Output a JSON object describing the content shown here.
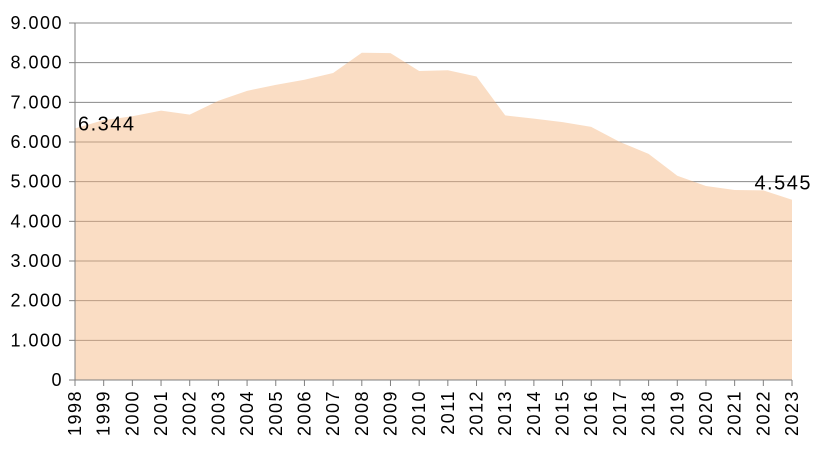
{
  "chart_data": {
    "type": "area",
    "title": "",
    "xlabel": "",
    "ylabel": "",
    "legend": false,
    "grid": true,
    "categories": [
      "1998",
      "1999",
      "2000",
      "2001",
      "2002",
      "2003",
      "2004",
      "2005",
      "2006",
      "2007",
      "2008",
      "2009",
      "2010",
      "2011",
      "2012",
      "2013",
      "2014",
      "2015",
      "2016",
      "2017",
      "2018",
      "2019",
      "2020",
      "2021",
      "2022",
      "2023"
    ],
    "values": [
      6344,
      6550,
      6650,
      6790,
      6690,
      7040,
      7290,
      7440,
      7570,
      7740,
      8250,
      8240,
      7790,
      7810,
      7650,
      6670,
      6590,
      6500,
      6380,
      6000,
      5700,
      5150,
      4890,
      4790,
      4780,
      4545
    ],
    "point_labels": {
      "first": "6.344",
      "last": "4.545"
    },
    "y_axis": {
      "min": 0,
      "max": 9000,
      "tick_step": 1000,
      "tick_labels": [
        "0",
        "1.000",
        "2.000",
        "3.000",
        "4.000",
        "5.000",
        "6.000",
        "7.000",
        "8.000",
        "9.000"
      ]
    },
    "colors": {
      "area_fill": "rgba(244,180,125,0.45)",
      "gridline": "#8a8a8a",
      "axis": "#7f7f7f",
      "label_text": "#000000"
    }
  }
}
